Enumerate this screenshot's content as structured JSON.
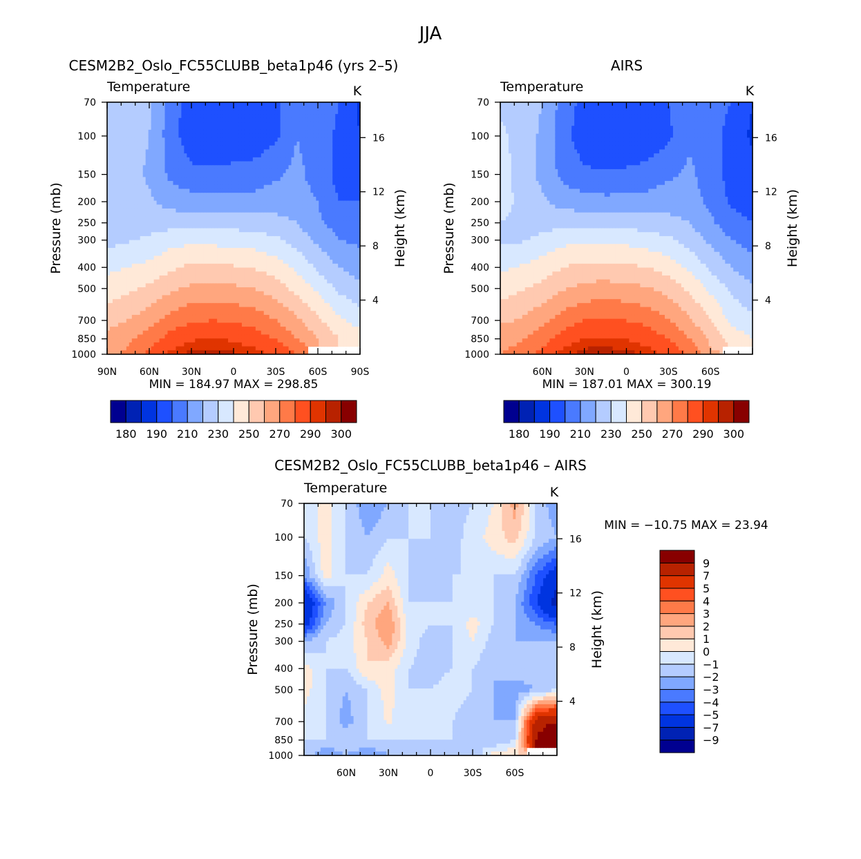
{
  "figure_title": "JJA",
  "chart_data": [
    {
      "type": "heatmap",
      "title": "CESM2B2_Oslo_FC55CLUBB_beta1p46 (yrs 2–5)",
      "left_label": "Temperature",
      "units": "K",
      "ylabel": "Pressure  (mb)",
      "y2label": "Height  (km)",
      "min_max": "MIN  =  184.97    MAX  =  298.85",
      "x_tick_labels": [
        "90N",
        "60N",
        "30N",
        "0",
        "30S",
        "60S",
        "90S"
      ],
      "x_tick_values": [
        90,
        60,
        30,
        0,
        -30,
        -60,
        -90
      ],
      "y_tick_values": [
        70,
        100,
        150,
        200,
        250,
        300,
        400,
        500,
        700,
        850,
        1000
      ],
      "y2_tick_values": [
        4,
        8,
        12,
        16
      ],
      "lats": [
        90,
        75,
        60,
        45,
        30,
        15,
        0,
        -15,
        -30,
        -45,
        -60,
        -75,
        -90
      ],
      "levels_mb": [
        70,
        100,
        150,
        200,
        250,
        300,
        400,
        500,
        700,
        850,
        1000
      ],
      "values": [
        [
          225,
          225,
          222,
          205,
          195,
          193,
          194,
          195,
          198,
          208,
          205,
          200,
          188
        ],
        [
          225,
          225,
          220,
          205,
          193,
          192,
          193,
          194,
          198,
          210,
          205,
          198,
          190
        ],
        [
          225,
          225,
          218,
          208,
          203,
          202,
          203,
          204,
          208,
          213,
          205,
          197,
          196
        ],
        [
          225,
          225,
          222,
          216,
          214,
          213,
          213,
          214,
          216,
          215,
          210,
          200,
          200
        ],
        [
          225,
          225,
          225,
          226,
          227,
          226,
          226,
          225,
          223,
          220,
          212,
          206,
          205
        ],
        [
          227,
          229,
          232,
          236,
          238,
          237,
          236,
          235,
          232,
          226,
          218,
          210,
          208
        ],
        [
          238,
          240,
          243,
          248,
          252,
          252,
          251,
          249,
          245,
          238,
          228,
          220,
          216
        ],
        [
          244,
          248,
          252,
          258,
          262,
          263,
          262,
          260,
          255,
          247,
          238,
          228,
          222
        ],
        [
          256,
          260,
          266,
          274,
          279,
          280,
          279,
          276,
          270,
          262,
          252,
          242,
          236
        ],
        [
          264,
          268,
          275,
          284,
          289,
          290,
          289,
          285,
          280,
          270,
          260,
          250,
          245
        ],
        [
          268,
          272,
          282,
          292,
          297,
          297,
          296,
          293,
          288,
          280,
          null,
          null,
          null
        ]
      ],
      "colorbar": {
        "boundaries": [
          180,
          185,
          190,
          200,
          210,
          220,
          230,
          240,
          250,
          260,
          270,
          280,
          290,
          295,
          300
        ],
        "labels": [
          "180",
          "190",
          "210",
          "230",
          "250",
          "270",
          "290",
          "300"
        ]
      }
    },
    {
      "type": "heatmap",
      "title": "AIRS",
      "left_label": "Temperature",
      "units": "K",
      "ylabel": "Pressure  (mb)",
      "y2label": "Height  (km)",
      "min_max": "MIN  =  187.01    MAX  =  300.19",
      "x_tick_labels": [
        "60N",
        "30N",
        "0",
        "30S",
        "60S"
      ],
      "x_tick_values": [
        60,
        30,
        0,
        -30,
        -60
      ],
      "y_tick_values": [
        70,
        100,
        150,
        200,
        250,
        300,
        400,
        500,
        700,
        850,
        1000
      ],
      "y2_tick_values": [
        4,
        8,
        12,
        16
      ],
      "lats": [
        90,
        75,
        60,
        45,
        30,
        15,
        0,
        -15,
        -30,
        -45,
        -60,
        -75,
        -90
      ],
      "levels_mb": [
        70,
        100,
        150,
        200,
        250,
        300,
        400,
        500,
        700,
        850,
        1000
      ],
      "values": [
        [
          228,
          226,
          220,
          206,
          196,
          193,
          194,
          196,
          200,
          208,
          205,
          200,
          190
        ],
        [
          232,
          226,
          218,
          204,
          194,
          191,
          191,
          193,
          198,
          208,
          205,
          196,
          188
        ],
        [
          235,
          226,
          217,
          207,
          202,
          201,
          202,
          204,
          208,
          212,
          205,
          196,
          194
        ],
        [
          236,
          226,
          222,
          216,
          214,
          213,
          213,
          214,
          216,
          214,
          208,
          198,
          196
        ],
        [
          230,
          226,
          226,
          227,
          227,
          226,
          226,
          225,
          223,
          220,
          212,
          204,
          200
        ],
        [
          228,
          229,
          233,
          237,
          238,
          238,
          237,
          235,
          232,
          226,
          218,
          210,
          206
        ],
        [
          238,
          241,
          245,
          250,
          253,
          253,
          252,
          250,
          246,
          238,
          228,
          220,
          214
        ],
        [
          245,
          249,
          253,
          259,
          263,
          264,
          263,
          261,
          256,
          248,
          238,
          228,
          222
        ],
        [
          258,
          261,
          267,
          275,
          280,
          281,
          280,
          277,
          271,
          262,
          250,
          238,
          232
        ],
        [
          266,
          269,
          276,
          285,
          290,
          291,
          290,
          286,
          280,
          270,
          258,
          246,
          240
        ],
        [
          270,
          274,
          283,
          293,
          298,
          298,
          297,
          294,
          288,
          279,
          262,
          null,
          null
        ]
      ],
      "colorbar": {
        "boundaries": [
          180,
          185,
          190,
          200,
          210,
          220,
          230,
          240,
          250,
          260,
          270,
          280,
          290,
          295,
          300
        ],
        "labels": [
          "180",
          "190",
          "210",
          "230",
          "250",
          "270",
          "290",
          "300"
        ]
      }
    },
    {
      "type": "heatmap",
      "title": "CESM2B2_Oslo_FC55CLUBB_beta1p46 – AIRS",
      "left_label": "Temperature",
      "units": "K",
      "ylabel": "Pressure  (mb)",
      "y2label": "Height  (km)",
      "min_max": "MIN  =  −10.75    MAX  =   23.94",
      "x_tick_labels": [
        "60N",
        "30N",
        "0",
        "30S",
        "60S"
      ],
      "x_tick_values": [
        60,
        30,
        0,
        -30,
        -60
      ],
      "y_tick_values": [
        70,
        100,
        150,
        200,
        250,
        300,
        400,
        500,
        700,
        850,
        1000
      ],
      "y2_tick_values": [
        4,
        8,
        12,
        16
      ],
      "lats": [
        90,
        75,
        60,
        45,
        30,
        15,
        0,
        -15,
        -30,
        -45,
        -60,
        -75,
        -90
      ],
      "levels_mb": [
        70,
        100,
        150,
        200,
        250,
        300,
        400,
        500,
        700,
        850,
        1000
      ],
      "values": [
        [
          -1,
          0.5,
          -1,
          -3,
          -2,
          -1,
          -1,
          -1.5,
          -1,
          0,
          2.5,
          -1,
          -3
        ],
        [
          -1,
          0.5,
          -1,
          -2,
          -1,
          -1,
          -1,
          -1.5,
          -0.5,
          0.5,
          1.5,
          -1,
          -2
        ],
        [
          -3,
          0.5,
          -1,
          -1,
          0.5,
          -1,
          -2,
          -1,
          -1,
          -1,
          -1,
          -4,
          -6
        ],
        [
          -7,
          -3,
          -1,
          1,
          2,
          -1,
          -1,
          -1,
          -1,
          -1,
          -2,
          -5,
          -8
        ],
        [
          -6,
          -2,
          -1,
          1.5,
          3,
          -0.5,
          -1,
          -1,
          0.5,
          -1,
          -2,
          -3,
          -4
        ],
        [
          -2,
          -1,
          -0.5,
          1,
          2.5,
          -0.5,
          -1.5,
          -1,
          0,
          -1.5,
          -2,
          -2,
          -2
        ],
        [
          0.5,
          -1,
          -1,
          1,
          0.5,
          -1,
          -1.5,
          -1,
          -1,
          -2,
          -1.5,
          -1.5,
          -2
        ],
        [
          0.5,
          -1,
          -2,
          -1,
          0.5,
          -1,
          -1,
          -0.5,
          -1,
          -2,
          -2.5,
          -2,
          -1
        ],
        [
          -0.5,
          -1,
          -2.5,
          -1,
          0.2,
          -1,
          -1,
          -1,
          -1.5,
          -2,
          -2,
          8,
          9
        ],
        [
          -1,
          -1,
          -1,
          -1,
          -1,
          -1,
          -1,
          -1,
          -1,
          -2,
          -1,
          9,
          12
        ],
        [
          -1,
          -3,
          -2,
          -3,
          -2,
          -2,
          -2,
          -2,
          -2,
          0.5,
          1,
          null,
          null
        ]
      ],
      "colorbar": {
        "boundaries": [
          -9,
          -7,
          -5,
          -4,
          -3,
          -2,
          -1,
          0,
          1,
          2,
          3,
          4,
          5,
          7,
          9
        ],
        "labels": [
          "−9",
          "−7",
          "−5",
          "−4",
          "−3",
          "−2",
          "−1",
          "0",
          "1",
          "2",
          "3",
          "4",
          "5",
          "7",
          "9"
        ]
      }
    }
  ],
  "palette": [
    "#000090",
    "#0022b4",
    "#0034e0",
    "#1e50ff",
    "#4a7aff",
    "#80a8ff",
    "#b4ccff",
    "#d8e8ff",
    "#ffe9d8",
    "#ffc9b0",
    "#ffa67e",
    "#ff7a48",
    "#ff5020",
    "#e03400",
    "#b82200",
    "#880000"
  ]
}
